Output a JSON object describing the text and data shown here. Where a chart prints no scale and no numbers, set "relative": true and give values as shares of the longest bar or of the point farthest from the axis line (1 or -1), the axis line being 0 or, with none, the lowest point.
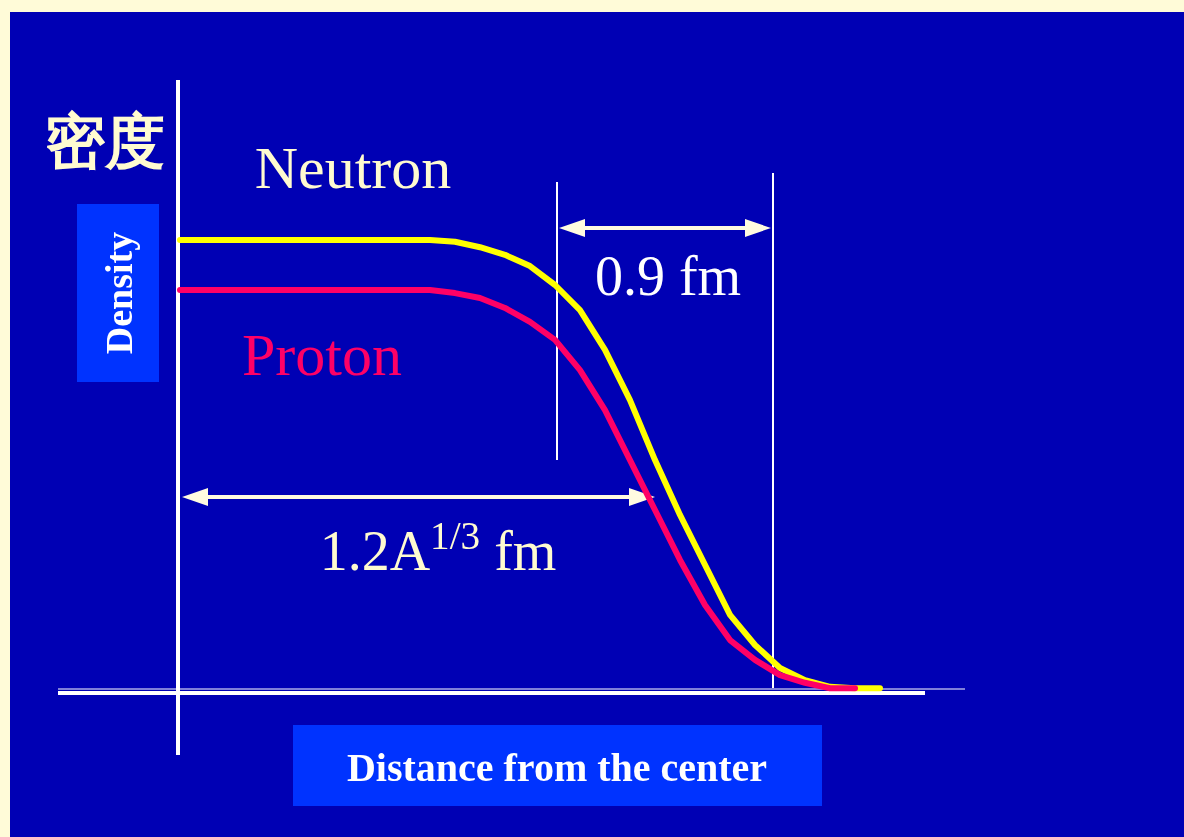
{
  "chart_data": {
    "type": "line",
    "relative": true,
    "xlabel": "Distance from the center",
    "ylabel": "Density",
    "annotations": [
      "密度",
      "0.9 fm",
      "1.2A$^{1/3}$ fm"
    ],
    "categories": [
      null,
      null,
      null,
      null,
      null,
      null,
      null,
      null,
      null,
      null,
      null,
      null,
      null,
      null,
      null,
      null,
      null,
      null,
      null,
      null,
      null,
      null,
      null,
      null,
      null,
      null,
      null,
      null,
      null
    ],
    "series": [
      {
        "name": "Neutron",
        "color": "#ffff00",
        "values": [
          1,
          1,
          1,
          1,
          1,
          1,
          1,
          1,
          1,
          1,
          1,
          0.996,
          0.984,
          0.967,
          0.942,
          0.9,
          0.844,
          0.756,
          0.644,
          0.511,
          0.389,
          0.278,
          0.167,
          0.1,
          0.049,
          0.022,
          0.007,
          0.004,
          0.004
        ]
      },
      {
        "name": "Proton",
        "color": "#ff0066",
        "values": [
          0.889,
          0.889,
          0.889,
          0.889,
          0.889,
          0.889,
          0.889,
          0.889,
          0.889,
          0.889,
          0.889,
          0.882,
          0.871,
          0.849,
          0.818,
          0.778,
          0.711,
          0.622,
          0.511,
          0.4,
          0.289,
          0.189,
          0.111,
          0.067,
          0.033,
          0.016,
          0.004,
          0.004,
          null
        ]
      }
    ]
  }
}
